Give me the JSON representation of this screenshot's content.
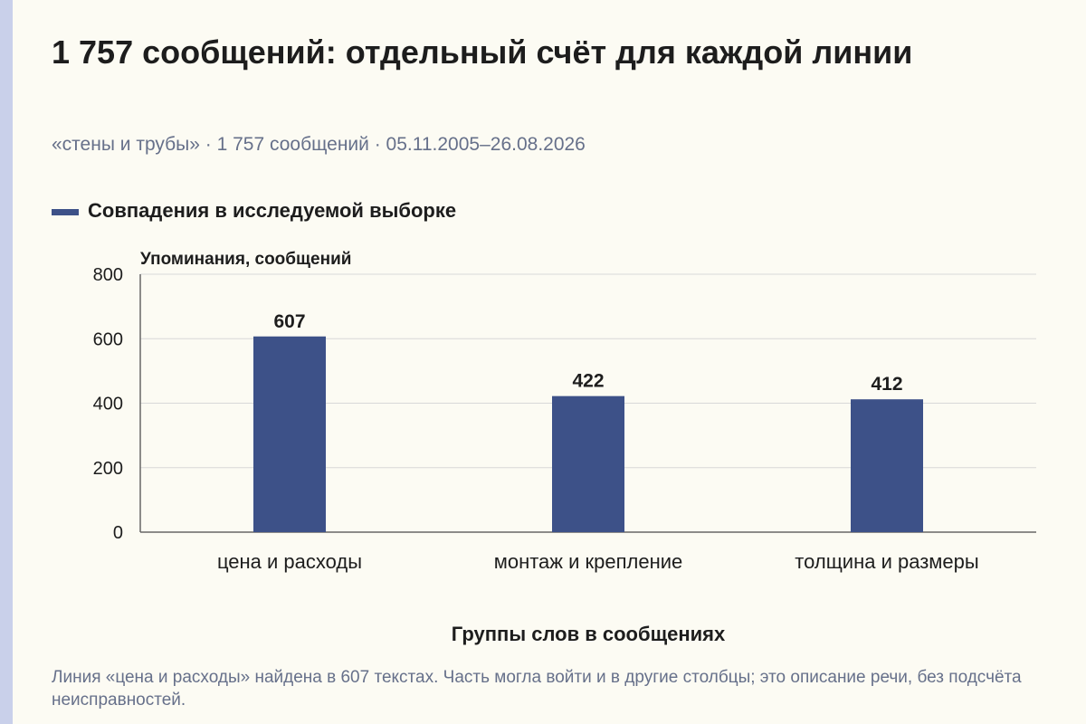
{
  "header": {
    "title": "1 757 сообщений: отдельный счёт для каждой линии",
    "subtitle": "«стены и трубы» · 1 757 сообщений · 05.11.2005–26.08.2026"
  },
  "legend": {
    "label": "Совпадения в исследуемой выборке"
  },
  "chart_data": {
    "type": "bar",
    "categories": [
      "цена и расходы",
      "монтаж и крепление",
      "толщина и размеры"
    ],
    "values": [
      607,
      422,
      412
    ],
    "series": [
      {
        "name": "Совпадения в исследуемой выборке",
        "values": [
          607,
          422,
          412
        ]
      }
    ],
    "ylabel": "Упоминания, сообщений",
    "xlabel": "Группы слов в сообщениях",
    "ylim": [
      0,
      800
    ],
    "yticks": [
      0,
      200,
      400,
      600,
      800
    ],
    "grid": true,
    "legend_position": "top-left",
    "bar_color": "#3d5188",
    "axis_color": "#666666",
    "grid_color": "#d8d8d8",
    "text_color": "#1d1d1d"
  },
  "caption": {
    "text": "Линия «цена и расходы» найдена в 607 текстах. Часть могла войти и в другие столбцы; это описание речи, без подсчёта неисправностей."
  }
}
